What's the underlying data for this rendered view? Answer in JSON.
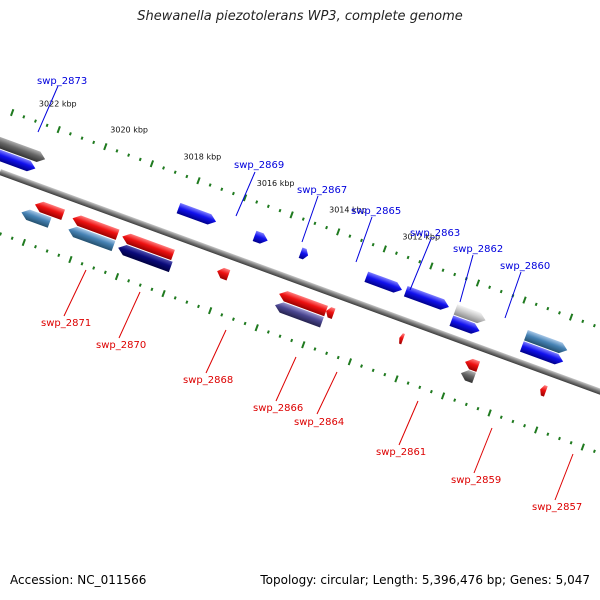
{
  "title": "Shewanella piezotolerans WP3, complete genome",
  "accession": "Accession: NC_011566",
  "topology": "Topology: circular; Length: 5,396,476 bp; Genes: 5,047",
  "colors": {
    "backbone": "#7a7a7a",
    "tick": "#1f7a1f",
    "forward_label": "#0000dd",
    "reverse_label": "#dd0000",
    "red_gene": "#ee1111",
    "blue_gene": "#1111ee",
    "navy_gene": "#0a0a7a",
    "steel_gene": "#4682b4",
    "slate_gene": "#4a4690",
    "gray_gene": "#666666",
    "lightgray_gene": "#c8c8c8"
  },
  "scale_labels": [
    "3022 kbp",
    "3020 kbp",
    "3018 kbp",
    "3016 kbp",
    "3014 kbp",
    "3012 kbp"
  ],
  "gene_labels_forward": [
    "swp_2873",
    "swp_2869",
    "swp_2867",
    "swp_2865",
    "swp_2863",
    "swp_2862",
    "swp_2860"
  ],
  "gene_labels_reverse": [
    "swp_2871",
    "swp_2870",
    "swp_2868",
    "swp_2866",
    "swp_2864",
    "swp_2861",
    "swp_2859",
    "swp_2857"
  ]
}
